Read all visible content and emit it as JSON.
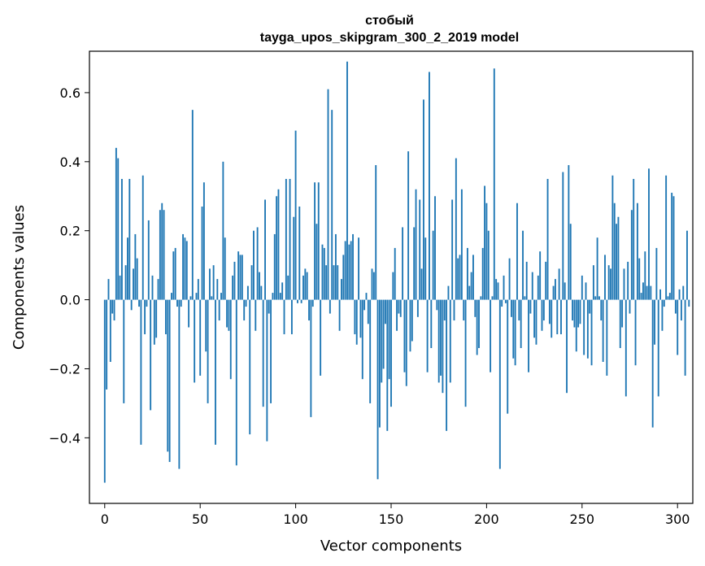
{
  "chart_data": {
    "type": "bar",
    "title": "стобый",
    "subtitle": "tayga_upos_skipgram_300_2_2019 model",
    "xlabel": "Vector components",
    "ylabel": "Components values",
    "xlim": [
      -8,
      308
    ],
    "ylim": [
      -0.59,
      0.72
    ],
    "xticks": [
      0,
      50,
      100,
      150,
      200,
      250,
      300
    ],
    "xtick_labels": [
      "0",
      "50",
      "100",
      "150",
      "200",
      "250",
      "300"
    ],
    "yticks": [
      -0.4,
      -0.2,
      0.0,
      0.2,
      0.4,
      0.6
    ],
    "ytick_labels": [
      "−0.4",
      "−0.2",
      "0.0",
      "0.2",
      "0.4",
      "0.6"
    ],
    "bar_color": "#1f77b4",
    "grid": false,
    "values": [
      -0.53,
      -0.26,
      0.06,
      -0.18,
      -0.04,
      -0.06,
      0.44,
      0.41,
      0.07,
      0.35,
      -0.3,
      0.1,
      0.18,
      0.35,
      -0.03,
      0.09,
      0.19,
      0.12,
      -0.02,
      -0.42,
      0.36,
      -0.1,
      -0.02,
      0.23,
      -0.32,
      0.07,
      -0.13,
      -0.11,
      0.06,
      0.26,
      0.28,
      0.26,
      -0.1,
      -0.44,
      -0.47,
      0.02,
      0.14,
      0.15,
      -0.02,
      -0.49,
      -0.02,
      0.19,
      0.18,
      0.17,
      -0.08,
      0.01,
      0.55,
      -0.24,
      0.02,
      0.06,
      -0.22,
      0.27,
      0.34,
      -0.15,
      -0.3,
      0.09,
      0.01,
      0.1,
      -0.42,
      0.06,
      -0.06,
      0.02,
      0.4,
      0.18,
      -0.08,
      -0.09,
      -0.23,
      0.07,
      0.11,
      -0.48,
      0.14,
      0.13,
      0.13,
      -0.06,
      -0.02,
      0.04,
      -0.39,
      0.1,
      0.2,
      -0.09,
      0.21,
      0.08,
      0.04,
      -0.31,
      0.29,
      -0.41,
      -0.04,
      -0.3,
      0.02,
      0.19,
      0.3,
      0.32,
      0.02,
      0.05,
      -0.1,
      0.35,
      0.07,
      0.35,
      -0.1,
      0.24,
      0.49,
      -0.01,
      0.27,
      -0.01,
      0.07,
      0.09,
      0.08,
      -0.06,
      -0.34,
      -0.02,
      0.34,
      0.22,
      0.34,
      -0.22,
      0.16,
      0.15,
      0.1,
      0.61,
      -0.04,
      0.55,
      0.1,
      0.19,
      0.1,
      -0.09,
      0.06,
      0.13,
      0.17,
      0.69,
      0.16,
      0.17,
      0.19,
      -0.1,
      -0.13,
      0.18,
      -0.11,
      -0.23,
      -0.03,
      0.02,
      -0.07,
      -0.3,
      0.09,
      0.08,
      0.39,
      -0.52,
      -0.37,
      -0.24,
      -0.2,
      -0.07,
      -0.38,
      -0.23,
      -0.31,
      0.08,
      0.15,
      -0.09,
      -0.04,
      -0.05,
      0.21,
      -0.21,
      -0.25,
      0.43,
      -0.15,
      -0.12,
      0.21,
      0.32,
      -0.05,
      0.29,
      0.09,
      0.58,
      0.18,
      -0.21,
      0.66,
      -0.14,
      0.2,
      0.3,
      -0.03,
      -0.24,
      -0.22,
      -0.27,
      -0.06,
      -0.38,
      0.04,
      -0.24,
      0.29,
      -0.06,
      0.41,
      0.12,
      0.13,
      0.32,
      -0.06,
      -0.31,
      0.15,
      0.04,
      0.08,
      0.13,
      -0.05,
      -0.16,
      -0.14,
      0.01,
      0.15,
      0.33,
      0.28,
      0.2,
      -0.21,
      0.01,
      0.67,
      0.06,
      0.05,
      -0.49,
      -0.02,
      0.07,
      -0.01,
      -0.33,
      0.12,
      -0.05,
      -0.17,
      -0.19,
      0.28,
      -0.06,
      -0.14,
      0.2,
      0.01,
      0.11,
      -0.21,
      -0.04,
      0.08,
      -0.11,
      -0.13,
      0.07,
      0.14,
      -0.09,
      -0.06,
      0.11,
      0.35,
      -0.07,
      -0.11,
      0.04,
      0.06,
      -0.1,
      0.09,
      -0.1,
      0.37,
      0.05,
      -0.27,
      0.39,
      0.22,
      -0.06,
      -0.08,
      -0.15,
      -0.08,
      -0.07,
      0.07,
      -0.16,
      0.05,
      -0.17,
      -0.04,
      -0.19,
      0.1,
      0.01,
      0.18,
      0.01,
      -0.06,
      -0.18,
      0.13,
      -0.22,
      0.1,
      0.09,
      0.36,
      0.28,
      0.22,
      0.24,
      -0.14,
      -0.08,
      0.09,
      -0.28,
      0.11,
      -0.04,
      0.26,
      0.35,
      -0.19,
      0.28,
      0.12,
      0.02,
      0.05,
      0.14,
      0.04,
      0.38,
      0.04,
      -0.37,
      -0.13,
      0.15,
      -0.28,
      0.03,
      -0.09,
      -0.02,
      0.36,
      0.01,
      0.02,
      0.31,
      0.3,
      -0.04,
      -0.16,
      0.03,
      -0.06,
      0.04,
      -0.22,
      0.2,
      -0.02
    ]
  }
}
